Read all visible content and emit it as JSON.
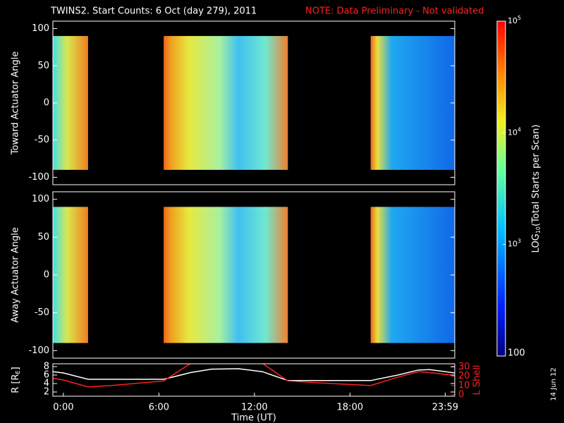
{
  "title": "TWINS2. Start Counts:  6 Oct (day 279), 2011",
  "note": "NOTE: Data Preliminary - Not validated",
  "date_stamp": "14 Jun 12",
  "colorbar": {
    "label_parts": [
      "LOG",
      "10",
      "(Total Starts per Scan)"
    ],
    "log": true,
    "clim": [
      100,
      100000
    ],
    "ticks": [
      {
        "value": 100000,
        "label": "10",
        "exponent": "5"
      },
      {
        "value": 10000,
        "label": "10",
        "exponent": "4"
      },
      {
        "value": 1000,
        "label": "10",
        "exponent": "3"
      },
      100
    ]
  },
  "chart_data": [
    {
      "type": "heatmap",
      "ylabel": "Toward Actuator Angle",
      "ylim": [
        -110,
        110
      ],
      "yticks": [
        -100,
        -50,
        0,
        50,
        100
      ],
      "xlim": [
        -0.66,
        24.58
      ],
      "angle_range": [
        -90,
        90
      ],
      "coverage": [
        [
          -0.66,
          1.55
        ],
        [
          6.3,
          14.1
        ],
        [
          19.3,
          24.58
        ]
      ]
    },
    {
      "type": "heatmap",
      "ylabel": "Away Actuator Angle",
      "ylim": [
        -110,
        110
      ],
      "yticks": [
        -100,
        -50,
        0,
        50,
        100
      ],
      "xlim": [
        -0.66,
        24.58
      ],
      "angle_range": [
        -90,
        90
      ],
      "coverage": [
        [
          -0.66,
          1.55
        ],
        [
          6.3,
          14.1
        ],
        [
          19.3,
          24.58
        ]
      ]
    },
    {
      "type": "line",
      "ylabel_parts": [
        "R [R",
        "E",
        "]"
      ],
      "y2label": "L Shell",
      "xlabel": "Time (UT)",
      "xlim": [
        -0.66,
        24.58
      ],
      "ylim": [
        1,
        8.67
      ],
      "yticks": [
        2,
        4,
        6,
        8
      ],
      "y2lim": [
        -1.5,
        33.5
      ],
      "y2ticks": [
        0,
        10,
        20,
        30
      ],
      "xticks": [
        {
          "value": 0,
          "label": "0:00"
        },
        {
          "value": 6,
          "label": "6:00"
        },
        {
          "value": 12,
          "label": "12:00"
        },
        {
          "value": 18,
          "label": "18:00"
        },
        {
          "value": 23.98,
          "label": "23:59"
        }
      ],
      "x": [
        -0.66,
        0,
        1.55,
        3,
        6.3,
        8,
        9.3,
        11,
        12.5,
        14.1,
        16,
        19.3,
        21,
        22.3,
        23,
        24.58
      ],
      "series": [
        {
          "name": "R",
          "color": "#ffffff",
          "values": [
            6.8,
            6.5,
            5.0,
            5.0,
            5.0,
            6.6,
            7.4,
            7.5,
            6.8,
            4.7,
            4.7,
            4.7,
            6.0,
            7.2,
            7.3,
            6.5
          ]
        },
        {
          "name": "L Shell",
          "color": "#ff2020",
          "axis": "y2",
          "values": [
            18,
            16,
            8.5,
            10,
            15,
            34,
            null,
            null,
            34,
            15,
            13,
            10,
            19,
            25,
            24,
            21
          ]
        }
      ]
    }
  ]
}
